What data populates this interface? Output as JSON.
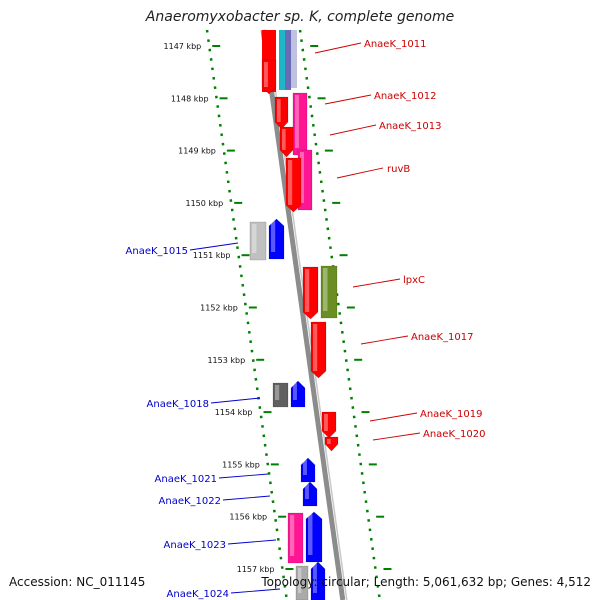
{
  "title": "Anaeromyxobacter sp. K, complete genome",
  "footer": {
    "accession": "Accession: NC_011145",
    "summary": "Topology: circular; Length: 5,061,632 bp; Genes: 4,512"
  },
  "ticks": [
    {
      "label": "1147 kbp",
      "kb": 1147
    },
    {
      "label": "1148 kbp",
      "kb": 1148
    },
    {
      "label": "1149 kbp",
      "kb": 1149
    },
    {
      "label": "1150 kbp",
      "kb": 1150
    },
    {
      "label": "1151 kbp",
      "kb": 1151
    },
    {
      "label": "1152 kbp",
      "kb": 1152
    },
    {
      "label": "1153 kbp",
      "kb": 1153
    },
    {
      "label": "1154 kbp",
      "kb": 1154
    },
    {
      "label": "1155 kbp",
      "kb": 1155
    },
    {
      "label": "1156 kbp",
      "kb": 1156
    },
    {
      "label": "1157 kbp",
      "kb": 1157
    }
  ],
  "genes": [
    {
      "name": "AnaeK_1011",
      "strand": "+"
    },
    {
      "name": "AnaeK_1012",
      "strand": "+"
    },
    {
      "name": "AnaeK_1013",
      "strand": "+"
    },
    {
      "name": "ruvB",
      "strand": "+"
    },
    {
      "name": "AnaeK_1015",
      "strand": "-"
    },
    {
      "name": "lpxC",
      "strand": "+"
    },
    {
      "name": "AnaeK_1017",
      "strand": "+"
    },
    {
      "name": "AnaeK_1018",
      "strand": "-"
    },
    {
      "name": "AnaeK_1019",
      "strand": "+"
    },
    {
      "name": "AnaeK_1020",
      "strand": "+"
    },
    {
      "name": "AnaeK_1021",
      "strand": "-"
    },
    {
      "name": "AnaeK_1022",
      "strand": "-"
    },
    {
      "name": "AnaeK_1023",
      "strand": "-"
    },
    {
      "name": "AnaeK_1024",
      "strand": "-"
    }
  ],
  "colors": {
    "forward_gene": "#ff0000",
    "reverse_gene": "#0000ff",
    "forward_label": "#cc0000",
    "reverse_label": "#0000cc",
    "cog_magenta": "#ff1493",
    "cog_olive": "#6b8e23",
    "cog_gray_light": "#c0c0c0",
    "cog_gray_dark": "#606060",
    "backbone": "#8c8c8c",
    "tick_green": "#008000"
  }
}
